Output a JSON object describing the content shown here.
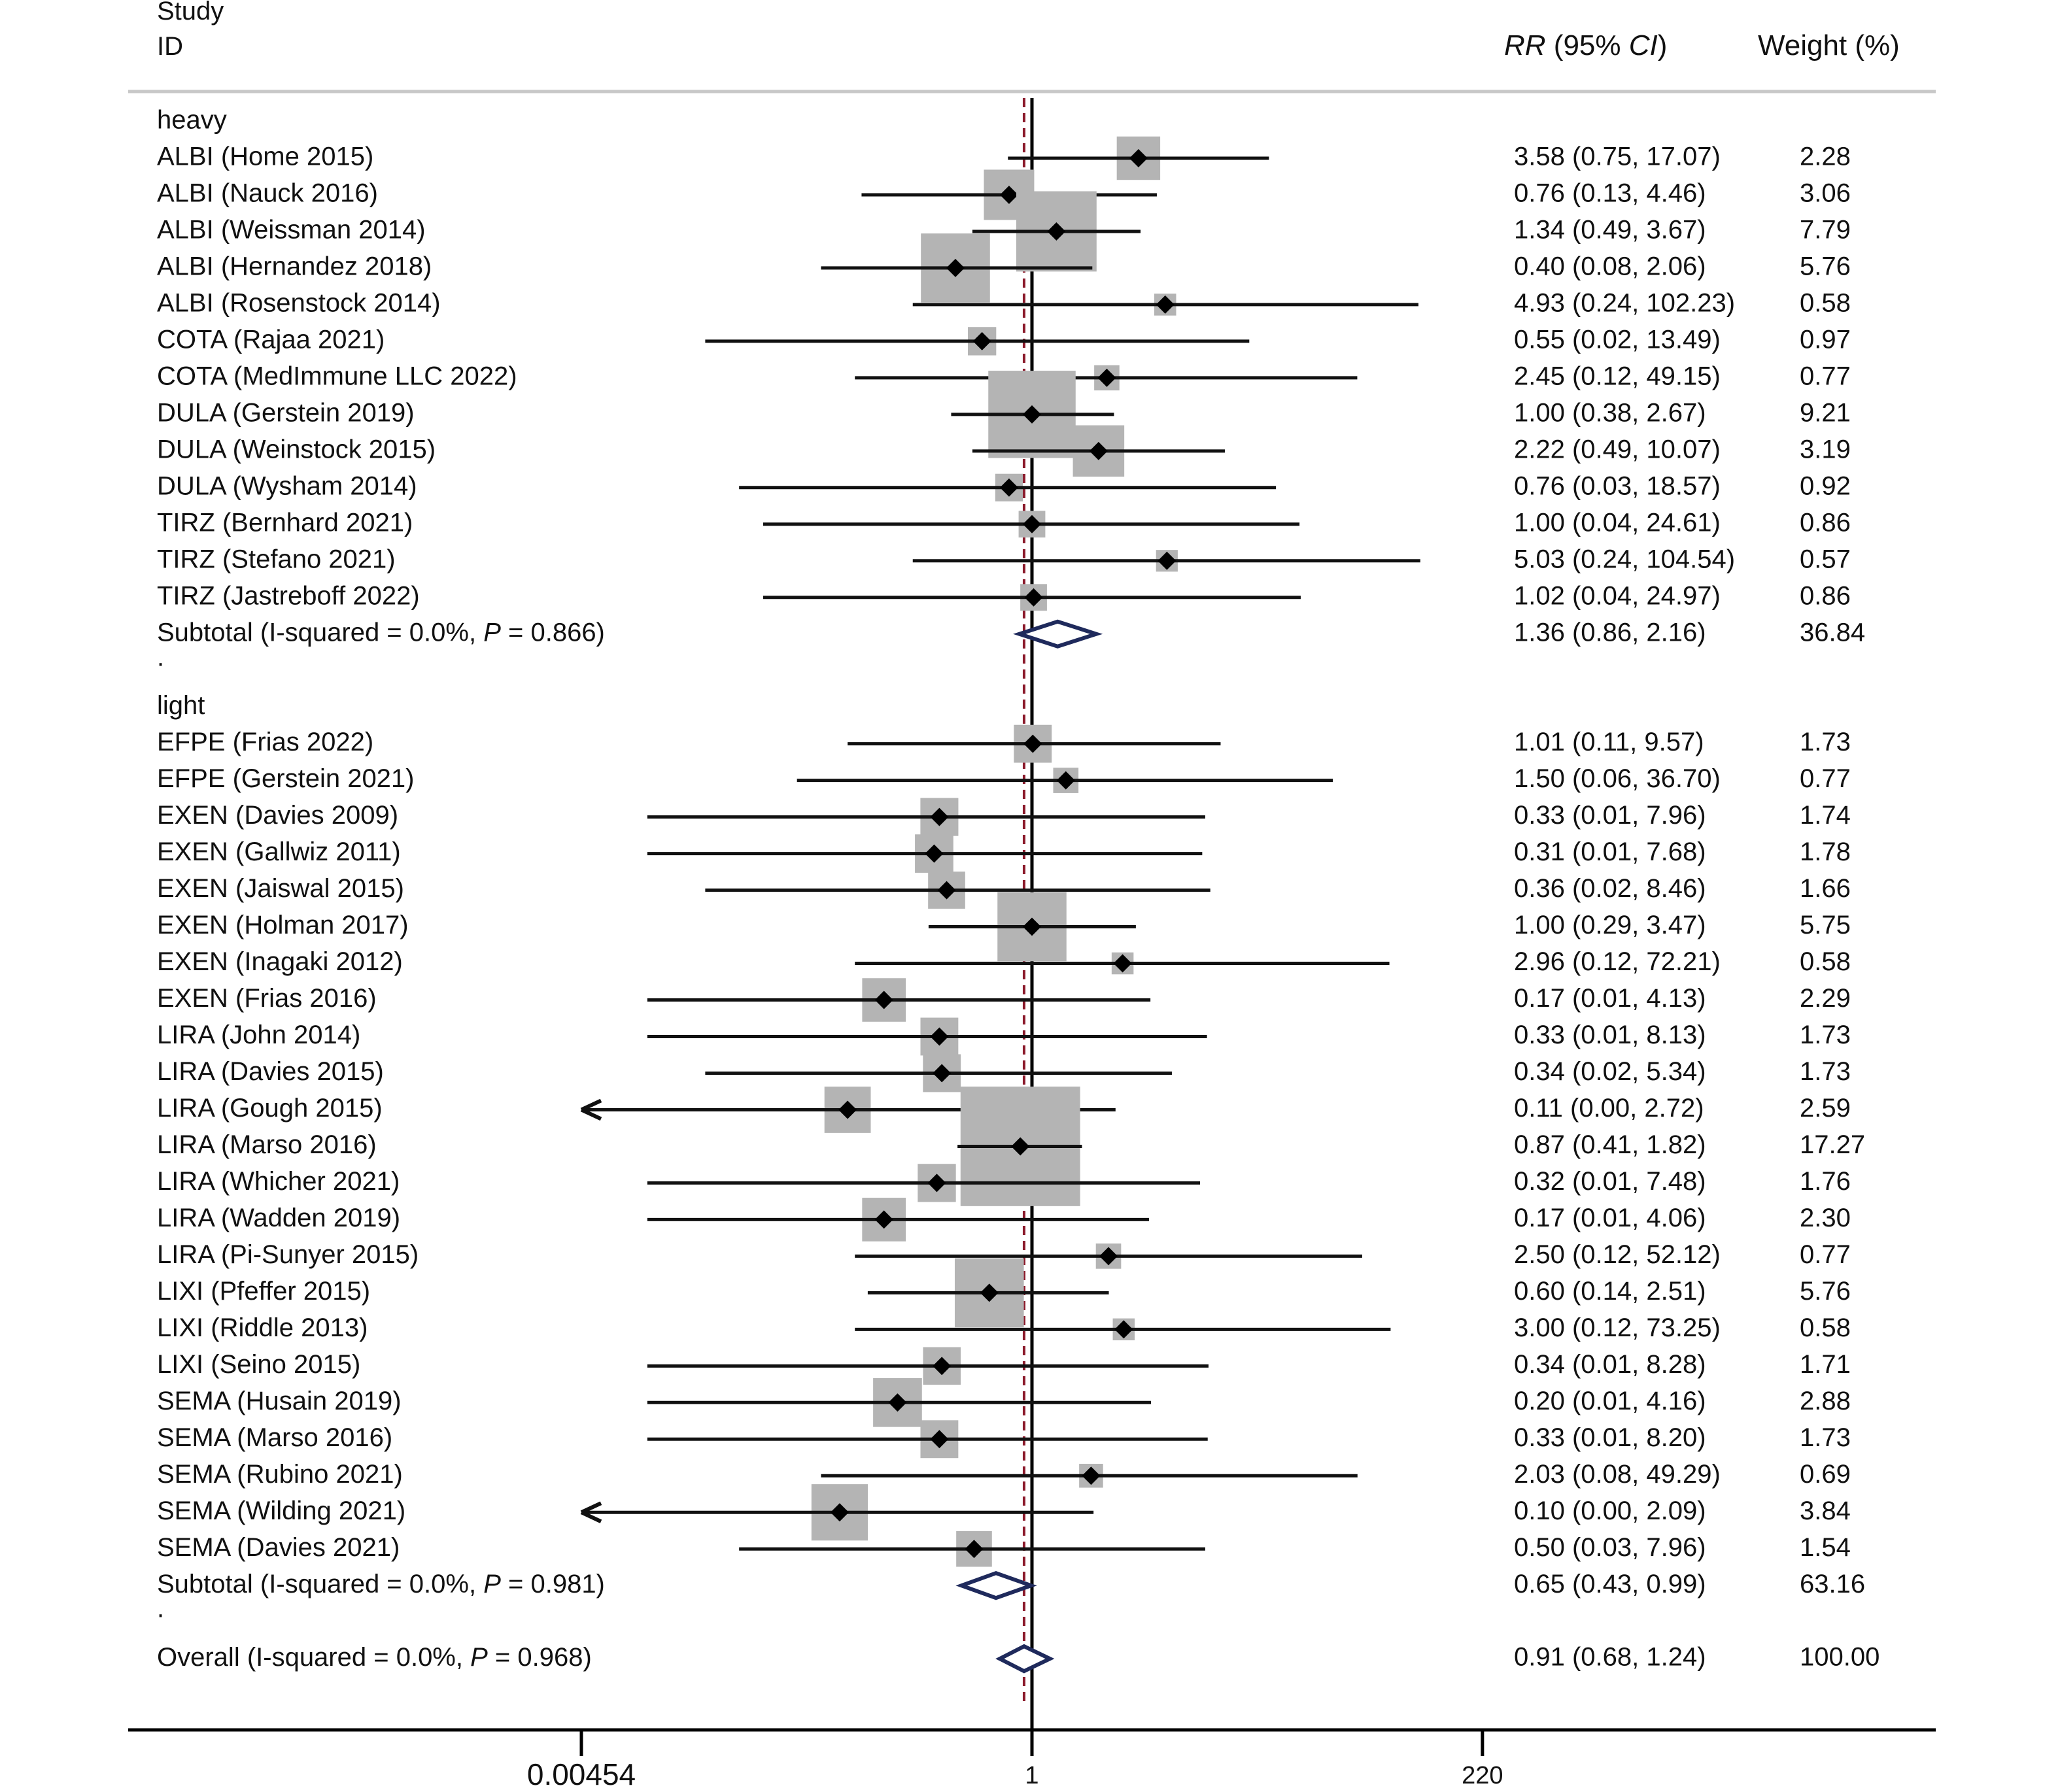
{
  "header": {
    "study_label": "Study",
    "id_label": "ID",
    "rr_label": "RR",
    "ci_open": " (95% ",
    "ci_label": "CI",
    "ci_close": ")",
    "weight_label": "Weight (%)"
  },
  "chart_data": {
    "type": "forest",
    "measure": "RR",
    "x_scale": "log",
    "x_ticks": [
      {
        "value": 0.00454,
        "label": "0.00454"
      },
      {
        "value": 1,
        "label": "1"
      },
      {
        "value": 220,
        "label": "220"
      }
    ],
    "null_line": 1,
    "overall_line_value": 0.91,
    "colors": {
      "box": "#b4b4b4",
      "diamond": "#1f2a5c",
      "overall_line": "#8b1a2b",
      "ci_line": "#111111"
    },
    "rows": [
      {
        "kind": "group",
        "label": "heavy"
      },
      {
        "kind": "study",
        "label": "ALBI (Home 2015)",
        "rr": 3.58,
        "lo": 0.75,
        "hi": 17.07,
        "estimate": "3.58 (0.75, 17.07)",
        "weight": "2.28"
      },
      {
        "kind": "study",
        "label": "ALBI (Nauck 2016)",
        "rr": 0.76,
        "lo": 0.13,
        "hi": 4.46,
        "estimate": "0.76 (0.13, 4.46)",
        "weight": "3.06"
      },
      {
        "kind": "study",
        "label": "ALBI (Weissman 2014)",
        "rr": 1.34,
        "lo": 0.49,
        "hi": 3.67,
        "estimate": "1.34 (0.49, 3.67)",
        "weight": "7.79"
      },
      {
        "kind": "study",
        "label": "ALBI (Hernandez 2018)",
        "rr": 0.4,
        "lo": 0.08,
        "hi": 2.06,
        "estimate": "0.40 (0.08, 2.06)",
        "weight": "5.76"
      },
      {
        "kind": "study",
        "label": "ALBI (Rosenstock 2014)",
        "rr": 4.93,
        "lo": 0.24,
        "hi": 102.23,
        "estimate": "4.93 (0.24, 102.23)",
        "weight": "0.58"
      },
      {
        "kind": "study",
        "label": "COTA (Rajaa 2021)",
        "rr": 0.55,
        "lo": 0.02,
        "hi": 13.49,
        "estimate": "0.55 (0.02, 13.49)",
        "weight": "0.97"
      },
      {
        "kind": "study",
        "label": "COTA (MedImmune LLC 2022)",
        "rr": 2.45,
        "lo": 0.12,
        "hi": 49.15,
        "estimate": "2.45 (0.12, 49.15)",
        "weight": "0.77"
      },
      {
        "kind": "study",
        "label": "DULA (Gerstein 2019)",
        "rr": 1.0,
        "lo": 0.38,
        "hi": 2.67,
        "estimate": "1.00 (0.38, 2.67)",
        "weight": "9.21"
      },
      {
        "kind": "study",
        "label": "DULA (Weinstock 2015)",
        "rr": 2.22,
        "lo": 0.49,
        "hi": 10.07,
        "estimate": "2.22 (0.49, 10.07)",
        "weight": "3.19"
      },
      {
        "kind": "study",
        "label": "DULA (Wysham 2014)",
        "rr": 0.76,
        "lo": 0.03,
        "hi": 18.57,
        "estimate": "0.76 (0.03, 18.57)",
        "weight": "0.92"
      },
      {
        "kind": "study",
        "label": "TIRZ (Bernhard 2021)",
        "rr": 1.0,
        "lo": 0.04,
        "hi": 24.61,
        "estimate": "1.00 (0.04, 24.61)",
        "weight": "0.86"
      },
      {
        "kind": "study",
        "label": "TIRZ (Stefano 2021)",
        "rr": 5.03,
        "lo": 0.24,
        "hi": 104.54,
        "estimate": "5.03 (0.24, 104.54)",
        "weight": "0.57"
      },
      {
        "kind": "study",
        "label": "TIRZ (Jastreboff 2022)",
        "rr": 1.02,
        "lo": 0.04,
        "hi": 24.97,
        "estimate": "1.02 (0.04, 24.97)",
        "weight": "0.86"
      },
      {
        "kind": "subtotal",
        "label": "Subtotal  (I-squared = 0.0%, ",
        "p_label": "P",
        "p_text": " = 0.866)",
        "rr": 1.36,
        "lo": 0.86,
        "hi": 2.16,
        "estimate": "1.36 (0.86, 2.16)",
        "weight": "36.84"
      },
      {
        "kind": "spacer",
        "label": "."
      },
      {
        "kind": "group",
        "label": "light"
      },
      {
        "kind": "study",
        "label": "EFPE (Frias 2022)",
        "rr": 1.01,
        "lo": 0.11,
        "hi": 9.57,
        "estimate": "1.01 (0.11, 9.57)",
        "weight": "1.73"
      },
      {
        "kind": "study",
        "label": "EFPE (Gerstein 2021)",
        "rr": 1.5,
        "lo": 0.06,
        "hi": 36.7,
        "estimate": "1.50 (0.06, 36.70)",
        "weight": "0.77"
      },
      {
        "kind": "study",
        "label": "EXEN (Davies 2009)",
        "rr": 0.33,
        "lo": 0.01,
        "hi": 7.96,
        "estimate": "0.33 (0.01, 7.96)",
        "weight": "1.74"
      },
      {
        "kind": "study",
        "label": "EXEN (Gallwiz 2011)",
        "rr": 0.31,
        "lo": 0.01,
        "hi": 7.68,
        "estimate": "0.31 (0.01, 7.68)",
        "weight": "1.78"
      },
      {
        "kind": "study",
        "label": "EXEN (Jaiswal 2015)",
        "rr": 0.36,
        "lo": 0.02,
        "hi": 8.46,
        "estimate": "0.36 (0.02, 8.46)",
        "weight": "1.66"
      },
      {
        "kind": "study",
        "label": "EXEN (Holman 2017)",
        "rr": 1.0,
        "lo": 0.29,
        "hi": 3.47,
        "estimate": "1.00 (0.29, 3.47)",
        "weight": "5.75"
      },
      {
        "kind": "study",
        "label": "EXEN (Inagaki 2012)",
        "rr": 2.96,
        "lo": 0.12,
        "hi": 72.21,
        "estimate": "2.96 (0.12, 72.21)",
        "weight": "0.58"
      },
      {
        "kind": "study",
        "label": "EXEN (Frias 2016)",
        "rr": 0.17,
        "lo": 0.01,
        "hi": 4.13,
        "estimate": "0.17 (0.01, 4.13)",
        "weight": "2.29"
      },
      {
        "kind": "study",
        "label": "LIRA (John 2014)",
        "rr": 0.33,
        "lo": 0.01,
        "hi": 8.13,
        "estimate": "0.33 (0.01, 8.13)",
        "weight": "1.73"
      },
      {
        "kind": "study",
        "label": "LIRA (Davies 2015)",
        "rr": 0.34,
        "lo": 0.02,
        "hi": 5.34,
        "estimate": "0.34 (0.02, 5.34)",
        "weight": "1.73"
      },
      {
        "kind": "study",
        "label": "LIRA (Gough 2015)",
        "rr": 0.11,
        "lo": 0.0,
        "hi": 2.72,
        "estimate": "0.11 (0.00, 2.72)",
        "weight": "2.59",
        "truncated_left": true
      },
      {
        "kind": "study",
        "label": "LIRA (Marso 2016)",
        "rr": 0.87,
        "lo": 0.41,
        "hi": 1.82,
        "estimate": "0.87 (0.41, 1.82)",
        "weight": "17.27"
      },
      {
        "kind": "study",
        "label": "LIRA (Whicher 2021)",
        "rr": 0.32,
        "lo": 0.01,
        "hi": 7.48,
        "estimate": "0.32 (0.01, 7.48)",
        "weight": "1.76"
      },
      {
        "kind": "study",
        "label": "LIRA (Wadden 2019)",
        "rr": 0.17,
        "lo": 0.01,
        "hi": 4.06,
        "estimate": "0.17 (0.01, 4.06)",
        "weight": "2.30"
      },
      {
        "kind": "study",
        "label": "LIRA (Pi-Sunyer 2015)",
        "rr": 2.5,
        "lo": 0.12,
        "hi": 52.12,
        "estimate": "2.50 (0.12, 52.12)",
        "weight": "0.77"
      },
      {
        "kind": "study",
        "label": "LIXI (Pfeffer 2015)",
        "rr": 0.6,
        "lo": 0.14,
        "hi": 2.51,
        "estimate": "0.60 (0.14, 2.51)",
        "weight": "5.76"
      },
      {
        "kind": "study",
        "label": "LIXI (Riddle 2013)",
        "rr": 3.0,
        "lo": 0.12,
        "hi": 73.25,
        "estimate": "3.00 (0.12, 73.25)",
        "weight": "0.58"
      },
      {
        "kind": "study",
        "label": "LIXI (Seino 2015)",
        "rr": 0.34,
        "lo": 0.01,
        "hi": 8.28,
        "estimate": "0.34 (0.01, 8.28)",
        "weight": "1.71"
      },
      {
        "kind": "study",
        "label": "SEMA (Husain 2019)",
        "rr": 0.2,
        "lo": 0.01,
        "hi": 4.16,
        "estimate": "0.20 (0.01, 4.16)",
        "weight": "2.88"
      },
      {
        "kind": "study",
        "label": "SEMA (Marso 2016)",
        "rr": 0.33,
        "lo": 0.01,
        "hi": 8.2,
        "estimate": "0.33 (0.01, 8.20)",
        "weight": "1.73"
      },
      {
        "kind": "study",
        "label": "SEMA (Rubino 2021)",
        "rr": 2.03,
        "lo": 0.08,
        "hi": 49.29,
        "estimate": "2.03 (0.08, 49.29)",
        "weight": "0.69"
      },
      {
        "kind": "study",
        "label": "SEMA (Wilding 2021)",
        "rr": 0.1,
        "lo": 0.0,
        "hi": 2.09,
        "estimate": "0.10 (0.00, 2.09)",
        "weight": "3.84"
      },
      {
        "kind": "study",
        "label": "SEMA (Davies 2021)",
        "rr": 0.5,
        "lo": 0.03,
        "hi": 7.96,
        "estimate": "0.50 (0.03, 7.96)",
        "weight": "1.54"
      },
      {
        "kind": "subtotal",
        "label": "Subtotal  (I-squared = 0.0%, ",
        "p_label": "P",
        "p_text": " = 0.981)",
        "rr": 0.65,
        "lo": 0.43,
        "hi": 0.99,
        "estimate": "0.65 (0.43, 0.99)",
        "weight": "63.16"
      },
      {
        "kind": "spacer",
        "label": "."
      },
      {
        "kind": "overall",
        "label": "Overall  (I-squared = 0.0%, ",
        "p_label": "P",
        "p_text": " = 0.968)",
        "rr": 0.91,
        "lo": 0.68,
        "hi": 1.24,
        "estimate": "0.91 (0.68, 1.24)",
        "weight": "100.00"
      }
    ]
  }
}
